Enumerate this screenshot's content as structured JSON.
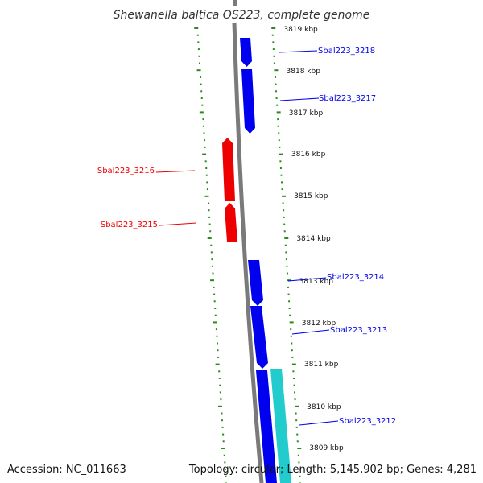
{
  "title": "Shewanella baltica OS223, complete genome",
  "footer": {
    "accession": "Accession: NC_011663",
    "summary": "Topology: circular; Length: 5,145,902 bp; Genes: 4,281"
  },
  "scale_labels": [
    "3819 kbp",
    "3818 kbp",
    "3817 kbp",
    "3816 kbp",
    "3815 kbp",
    "3814 kbp",
    "3813 kbp",
    "3812 kbp",
    "3811 kbp",
    "3810 kbp",
    "3809 kbp"
  ],
  "colors": {
    "forward_gene": "#0000ee",
    "reverse_gene": "#ee0000",
    "highlight_gene": "#22cccc",
    "backbone": "#7a7a7a",
    "scale_ticks": "#2a8a1a"
  },
  "genes": [
    {
      "id": "Sbal223_3218",
      "strand": "forward",
      "label": "Sbal223_3218"
    },
    {
      "id": "Sbal223_3217",
      "strand": "forward",
      "label": "Sbal223_3217"
    },
    {
      "id": "Sbal223_3216",
      "strand": "reverse",
      "label": "Sbal223_3216"
    },
    {
      "id": "Sbal223_3215",
      "strand": "reverse",
      "label": "Sbal223_3215"
    },
    {
      "id": "Sbal223_3214",
      "strand": "forward",
      "label": "Sbal223_3214"
    },
    {
      "id": "Sbal223_3213",
      "strand": "forward",
      "label": "Sbal223_3213"
    },
    {
      "id": "Sbal223_3212",
      "strand": "forward",
      "label": "Sbal223_3212"
    }
  ]
}
